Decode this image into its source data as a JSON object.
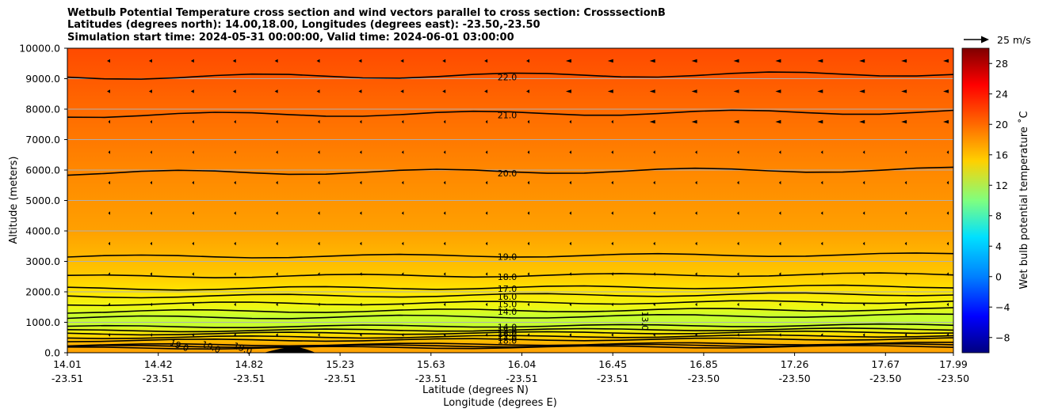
{
  "title_lines": [
    "Wetbulb Potential Temperature cross section and wind vectors parallel to cross section: CrosssectionB",
    "Latitudes (degrees north): 14.00,18.00, Longitudes (degrees east): -23.50,-23.50",
    "Simulation start time: 2024-05-31 00:00:00, Valid time: 2024-06-01 03:00:00"
  ],
  "chart_data": {
    "type": "heatmap",
    "ylabel": "Altitude (meters)",
    "xlabel_1": "Latitude (degrees N)",
    "xlabel_2": "Longitude (degrees E)",
    "ylim": [
      0,
      10000
    ],
    "y_ticks": [
      "0.0",
      "1000.0",
      "2000.0",
      "3000.0",
      "4000.0",
      "5000.0",
      "6000.0",
      "7000.0",
      "8000.0",
      "9000.0",
      "10000.0"
    ],
    "x_ticks": [
      {
        "lat": "14.01",
        "lon": "-23.51"
      },
      {
        "lat": "14.42",
        "lon": "-23.51"
      },
      {
        "lat": "14.82",
        "lon": "-23.51"
      },
      {
        "lat": "15.23",
        "lon": "-23.51"
      },
      {
        "lat": "15.63",
        "lon": "-23.51"
      },
      {
        "lat": "16.04",
        "lon": "-23.51"
      },
      {
        "lat": "16.45",
        "lon": "-23.51"
      },
      {
        "lat": "16.85",
        "lon": "-23.50"
      },
      {
        "lat": "17.26",
        "lon": "-23.50"
      },
      {
        "lat": "17.67",
        "lon": "-23.50"
      },
      {
        "lat": "17.99",
        "lon": "-23.50"
      }
    ],
    "grid": true,
    "colorbar": {
      "label": "Wet bulb potential temperature ˚C",
      "min": -10,
      "max": 30,
      "ticks": [
        "28",
        "24",
        "20",
        "16",
        "12",
        "8",
        "4",
        "0",
        "−4",
        "−8"
      ]
    },
    "vector_key": {
      "label": "25 m/s"
    },
    "contours": [
      {
        "label": "22.0",
        "altitude": 9050
      },
      {
        "label": "21.0",
        "altitude": 7800
      },
      {
        "label": "20.0",
        "altitude": 5900
      },
      {
        "label": "19.0",
        "altitude": 3150
      },
      {
        "label": "18.0",
        "altitude": 2500
      },
      {
        "label": "17.0",
        "altitude": 2100
      },
      {
        "label": "16.0",
        "altitude": 1850
      },
      {
        "label": "15.0",
        "altitude": 1600
      },
      {
        "label": "14.0",
        "altitude": 1350
      },
      {
        "label": "13.0",
        "altitude": 1150
      },
      {
        "label": "14.0",
        "altitude": 850
      },
      {
        "label": "15.0",
        "altitude": 720
      },
      {
        "label": "16.0",
        "altitude": 620
      },
      {
        "label": "17.0",
        "altitude": 500
      },
      {
        "label": "18.0",
        "altitude": 400
      },
      {
        "label": "19.0",
        "altitude": 250
      },
      {
        "label": "19.0",
        "altitude": 200
      },
      {
        "label": "19.0",
        "altitude": 150
      }
    ]
  }
}
